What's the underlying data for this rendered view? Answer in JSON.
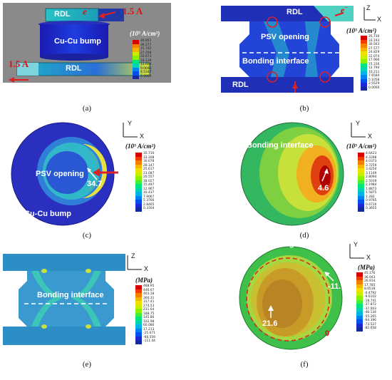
{
  "palette": [
    "#d60000",
    "#f03c00",
    "#f57f00",
    "#f5b400",
    "#f0e000",
    "#c6f000",
    "#8cf000",
    "#3ef03a",
    "#00e67a",
    "#00d2b4",
    "#00b4e6",
    "#0082f0",
    "#0050f0",
    "#1e28d2",
    "#1428a0"
  ],
  "panels": {
    "a": {
      "caption": "(a)",
      "rdl_top": "RDL",
      "rdl_bottom": "RDL",
      "bump": "Cu-Cu bump",
      "electron": "e",
      "electron_sup": "−",
      "current_top": "1.5 A",
      "current_left": "1.5 A",
      "unit": "(10⁵ A/cm²)",
      "legend": [
        "40.852",
        "36.277",
        "31.742",
        "27.208",
        "22.673",
        "18.139",
        "13.604",
        "9.0693",
        "4.5347",
        "0.0000"
      ]
    },
    "b": {
      "caption": "(b)",
      "rdl_top": "RDL",
      "rdl_bottom": "RDL",
      "psv": "PSV opening",
      "bonding": "Bonding interface",
      "electron": "e",
      "electron_sup": "−",
      "axis_z": "Z",
      "axis_x": "X",
      "unit": "(10⁵ A/cm²)",
      "legend": [
        "35.730",
        "33.193",
        "30.563",
        "27.577",
        "24.829",
        "22.074",
        "17.966",
        "15.316",
        "12.794",
        "10.211",
        "7.6584",
        "5.1058",
        "2.5529",
        "0.0000"
      ]
    },
    "c": {
      "caption": "(c)",
      "psv": "PSV opening",
      "bump": "Cu-Cu bump",
      "value": "34.7",
      "axis_y": "Y",
      "axis_x": "X",
      "unit": "(10⁵ A/cm²)",
      "legend": [
        "35.730",
        "33.208",
        "30.678",
        "28.147",
        "25.617",
        "23.087",
        "20.557",
        "18.027",
        "15.497",
        "12.967",
        "10.437",
        "7.9067",
        "5.3766",
        "2.8465",
        "0.3164"
      ]
    },
    "d": {
      "caption": "(d)",
      "bonding": "Bonding interface",
      "value": "4.6",
      "axis_y": "Y",
      "axis_x": "X",
      "unit": "(10⁵ A/cm²)",
      "legend": [
        "4.6423",
        "4.3398",
        "4.0373",
        "3.7259",
        "3.4254",
        "3.1149",
        "2.8094",
        "2.5039",
        "2.1984",
        "1.8873",
        "1.5875",
        "1.282",
        "0.9765",
        "0.6710",
        "0.3655"
      ]
    },
    "e": {
      "caption": "(e)",
      "bonding": "Bonding interface",
      "axis_z": "Z",
      "axis_x": "X",
      "unit": "(MPa)",
      "legend": [
        "488.95",
        "446.07",
        "403.18",
        "360.31",
        "317.41",
        "274.53",
        "231.64",
        "188.75",
        "145.86",
        "102.98",
        "60.086",
        "17.213",
        "-25.671",
        "-68.559",
        "-111.44"
      ]
    },
    "f": {
      "caption": "(f)",
      "bonding": "Bonding interface",
      "value_center": "21.6",
      "value_edge": "-11.6",
      "value_zero": "0",
      "axis_y": "Y",
      "axis_x": "X",
      "unit": "(MPa)",
      "legend": [
        "45.176",
        "36.043",
        "26.914",
        "17.785",
        "8.6518",
        "-0.4792",
        "-9.6102",
        "-18.741",
        "-27.872",
        "-37.003",
        "-46.134",
        "-55.265",
        "-64.396",
        "-73.527",
        "-82.658"
      ]
    }
  }
}
